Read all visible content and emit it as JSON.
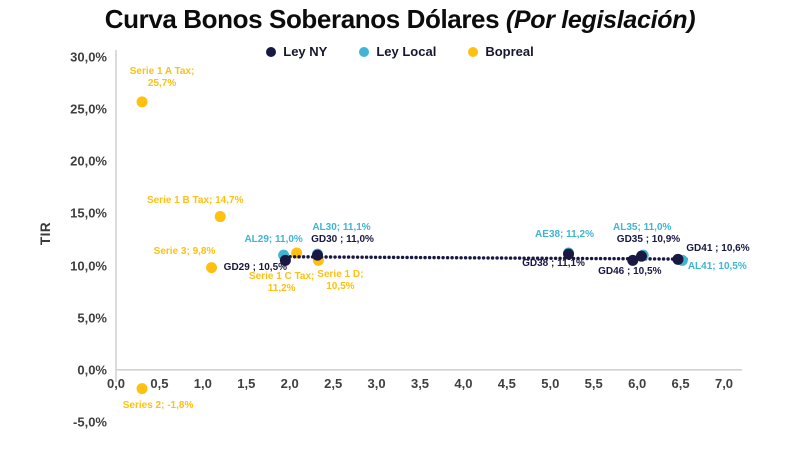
{
  "title": {
    "main": "Curva Bonos Soberanos Dólares",
    "suffix": " (Por legislación)"
  },
  "legend": {
    "items": [
      {
        "label": "Ley NY",
        "color": "#181843"
      },
      {
        "label": "Ley Local",
        "color": "#3FB4D3"
      },
      {
        "label": "Bopreal",
        "color": "#FFC010"
      }
    ]
  },
  "colors": {
    "axis_line": "#d2d2d2",
    "tick_text": "#3f3f3f",
    "title_text": "#0c0c0c"
  },
  "chart_data": {
    "type": "scatter",
    "title": "Curva Bonos Soberanos Dólares (Por legislación)",
    "xlabel": "",
    "ylabel": "TIR",
    "xlim": [
      0,
      7
    ],
    "ylim": [
      -5,
      30
    ],
    "grid": false,
    "legend_position": "top-center",
    "x_ticks": [
      {
        "v": 0.0,
        "t": "0,0"
      },
      {
        "v": 0.5,
        "t": "0,5"
      },
      {
        "v": 1.0,
        "t": "1,0"
      },
      {
        "v": 1.5,
        "t": "1,5"
      },
      {
        "v": 2.0,
        "t": "2,0"
      },
      {
        "v": 2.5,
        "t": "2,5"
      },
      {
        "v": 3.0,
        "t": "3,0"
      },
      {
        "v": 3.5,
        "t": "3,5"
      },
      {
        "v": 4.0,
        "t": "4,0"
      },
      {
        "v": 4.5,
        "t": "4,5"
      },
      {
        "v": 5.0,
        "t": "5,0"
      },
      {
        "v": 5.5,
        "t": "5,5"
      },
      {
        "v": 6.0,
        "t": "6,0"
      },
      {
        "v": 6.5,
        "t": "6,5"
      },
      {
        "v": 7.0,
        "t": "7,0"
      }
    ],
    "y_ticks": [
      {
        "v": 30,
        "t": "30,0%"
      },
      {
        "v": 25,
        "t": "25,0%"
      },
      {
        "v": 20,
        "t": "20,0%"
      },
      {
        "v": 15,
        "t": "15,0%"
      },
      {
        "v": 10,
        "t": "10,0%"
      },
      {
        "v": 5,
        "t": "5,0%"
      },
      {
        "v": 0,
        "t": "0,0%"
      },
      {
        "v": -5,
        "t": "-5,0%"
      }
    ],
    "series": [
      {
        "name": "Ley NY",
        "color": "#181843",
        "points": [
          {
            "id": "GD29",
            "x": 1.95,
            "y": 10.5,
            "label": "GD29 ; 10,5%",
            "dx": -30,
            "dy": 8
          },
          {
            "id": "GD30",
            "x": 2.32,
            "y": 11.0,
            "label": "GD30 ; 11,0%",
            "dx": 25,
            "dy": -15
          },
          {
            "id": "GD38",
            "x": 5.21,
            "y": 11.1,
            "label": "GD38 ; 11,1%",
            "dx": -15,
            "dy": 10
          },
          {
            "id": "GD35",
            "x": 6.05,
            "y": 10.9,
            "label": "GD35 ; 10,9%",
            "dx": 7,
            "dy": -16
          },
          {
            "id": "GD46",
            "x": 5.95,
            "y": 10.5,
            "label": "GD46 ; 10,5%",
            "dx": -3,
            "dy": 12
          },
          {
            "id": "GD41",
            "x": 6.47,
            "y": 10.6,
            "label": "GD41 ; 10,6%",
            "dx": 40,
            "dy": -10
          }
        ]
      },
      {
        "name": "Ley Local",
        "color": "#3FB4D3",
        "points": [
          {
            "id": "AL29",
            "x": 1.93,
            "y": 11.0,
            "label": "AL29; 11,0%",
            "dx": -10,
            "dy": -15
          },
          {
            "id": "AL30",
            "x": 2.32,
            "y": 11.1,
            "label": "AL30; 11,1%",
            "dx": 24,
            "dy": -26
          },
          {
            "id": "AE38",
            "x": 5.21,
            "y": 11.2,
            "label": "AE38; 11,2%",
            "dx": -4,
            "dy": -18
          },
          {
            "id": "AL35",
            "x": 6.07,
            "y": 11.0,
            "label": "AL35; 11,0%",
            "dx": -1,
            "dy": -27
          },
          {
            "id": "AL41",
            "x": 6.52,
            "y": 10.5,
            "label": "AL41; 10,5%",
            "dx": 35,
            "dy": 7
          }
        ]
      },
      {
        "name": "Bopreal",
        "color": "#FFC010",
        "points": [
          {
            "id": "Serie 1 A Tax",
            "x": 0.3,
            "y": 25.7,
            "label": "Serie 1 A Tax;\n25,7%",
            "dx": 20,
            "dy": -24
          },
          {
            "id": "Serie 1 B Tax",
            "x": 1.2,
            "y": 14.7,
            "label": "Serie 1 B Tax; 14,7%",
            "dx": -25,
            "dy": -16
          },
          {
            "id": "Serie 3",
            "x": 1.1,
            "y": 9.8,
            "label": "Serie 3; 9,8%",
            "dx": -27,
            "dy": -16
          },
          {
            "id": "Serie 1 C Tax",
            "x": 2.08,
            "y": 11.2,
            "label": "Serie 1 C Tax;\n11,2%",
            "dx": -15,
            "dy": 30
          },
          {
            "id": "Serie 1 D",
            "x": 2.33,
            "y": 10.5,
            "label": "Serie 1 D;\n10,5%",
            "dx": 22,
            "dy": 21
          },
          {
            "id": "Series 2",
            "x": 0.3,
            "y": -1.8,
            "label": "Series 2; -1,8%",
            "dx": 16,
            "dy": 17
          }
        ]
      }
    ],
    "trendline": {
      "x1": 1.9,
      "y1": 10.85,
      "x2": 6.58,
      "y2": 10.62,
      "color": "#181843",
      "style": "dotted"
    }
  }
}
